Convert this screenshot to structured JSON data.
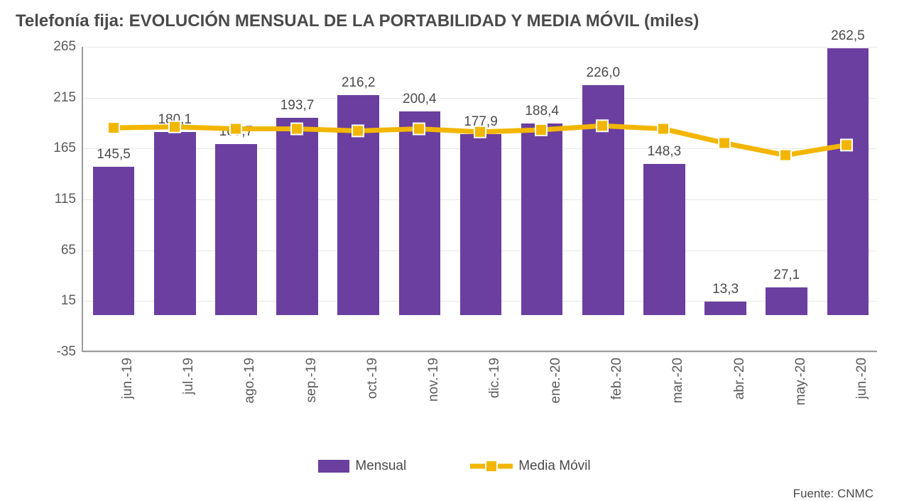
{
  "title": "Telefonía fija: EVOLUCIÓN MENSUAL DE LA PORTABILIDAD Y MEDIA MÓVIL (miles)",
  "title_fontsize": 24,
  "source": "Fuente: CNMC",
  "source_fontsize": 17,
  "chart": {
    "type": "bar+line",
    "background_color": "#ffffff",
    "grid_color": "#e8e8e8",
    "axis_color": "#9b9b9b",
    "tick_label_color": "#5a5a5a",
    "tick_fontsize": 19,
    "value_label_color": "#4b4b4b",
    "value_label_fontsize": 19,
    "y": {
      "min": -35,
      "max": 265,
      "ticks": [
        -35,
        15,
        65,
        115,
        165,
        215,
        265
      ]
    },
    "categories": [
      "jun.-19",
      "jul.-19",
      "ago.-19",
      "sep.-19",
      "oct.-19",
      "nov.-19",
      "dic.-19",
      "ene.-20",
      "feb.-20",
      "mar.-20",
      "abr.-20",
      "may.-20",
      "jun.-20"
    ],
    "bars": {
      "label": "Mensual",
      "color": "#6b3fa0",
      "values": [
        145.5,
        180.1,
        167.7,
        193.7,
        216.2,
        200.4,
        177.9,
        188.4,
        226.0,
        148.3,
        13.3,
        27.1,
        262.5
      ],
      "value_labels": [
        "145,5",
        "180,1",
        "167,7",
        "193,7",
        "216,2",
        "200,4",
        "177,9",
        "188,4",
        "226,0",
        "148,3",
        "13,3",
        "27,1",
        "262,5"
      ],
      "bar_width_ratio": 0.68
    },
    "line": {
      "label": "Media Móvil",
      "color": "#f2b600",
      "stroke_width": 7,
      "marker": {
        "shape": "square",
        "size": 16,
        "fill": "#f2b600",
        "stroke": "#ffffff",
        "stroke_width": 2
      },
      "values": [
        185,
        186,
        184,
        184,
        182,
        184,
        181,
        183,
        187,
        184,
        170,
        158,
        168
      ]
    },
    "legend": {
      "fontsize": 19,
      "items": [
        {
          "key": "bars",
          "label": "Mensual"
        },
        {
          "key": "line",
          "label": "Media Móvil"
        }
      ]
    }
  }
}
